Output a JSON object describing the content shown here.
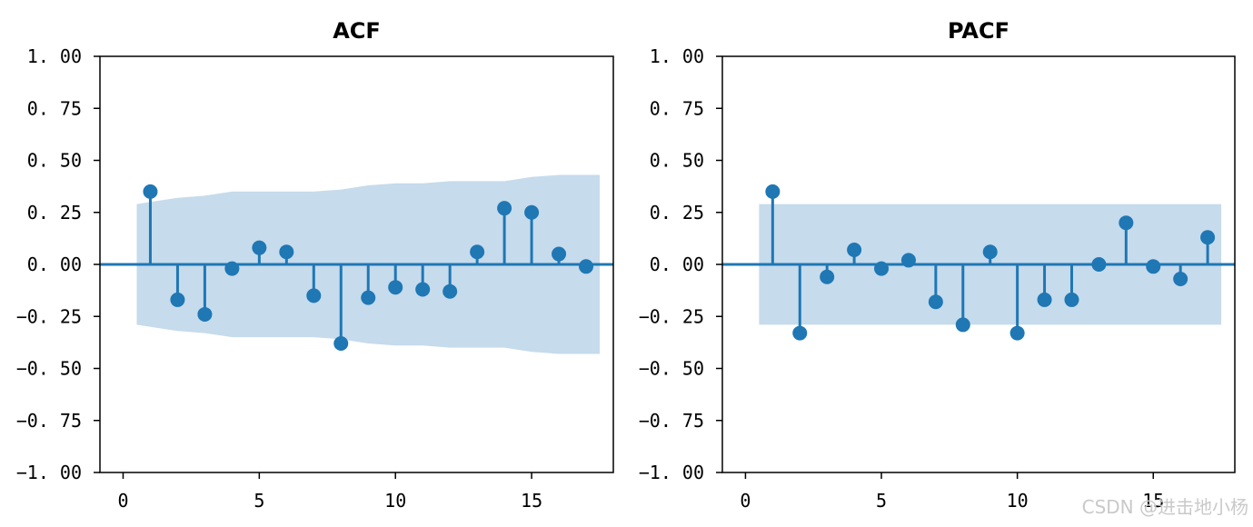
{
  "chart_data": [
    {
      "type": "stem",
      "title": "ACF",
      "xlabel": "",
      "ylabel": "",
      "xlim": [
        -0.85,
        18.0
      ],
      "ylim": [
        -1.0,
        1.0
      ],
      "x_ticks": [
        0,
        5,
        10,
        15
      ],
      "x_tick_labels": [
        "0",
        "5",
        "10",
        "15"
      ],
      "y_ticks": [
        1.0,
        0.75,
        0.5,
        0.25,
        0.0,
        -0.25,
        -0.5,
        -0.75,
        -1.0
      ],
      "y_tick_labels": [
        "1. 00",
        "0. 75",
        "0. 50",
        "0. 25",
        "0. 00",
        "−0. 25",
        "−0. 50",
        "−0. 75",
        "−1. 00"
      ],
      "grid": false,
      "x": [
        1,
        2,
        3,
        4,
        5,
        6,
        7,
        8,
        9,
        10,
        11,
        12,
        13,
        14,
        15,
        16,
        17
      ],
      "values": [
        0.35,
        -0.17,
        -0.24,
        -0.02,
        0.08,
        0.06,
        -0.15,
        -0.38,
        -0.16,
        -0.11,
        -0.12,
        -0.13,
        0.06,
        0.27,
        0.25,
        0.05,
        -0.01
      ],
      "confidence_band": {
        "x": [
          0.5,
          1.5,
          2,
          3,
          4,
          5,
          6,
          7,
          8,
          9,
          10,
          11,
          12,
          13,
          14,
          15,
          16,
          17,
          17.5
        ],
        "upper": [
          0.29,
          0.31,
          0.32,
          0.33,
          0.35,
          0.35,
          0.35,
          0.35,
          0.36,
          0.38,
          0.39,
          0.39,
          0.4,
          0.4,
          0.4,
          0.42,
          0.43,
          0.43,
          0.43
        ]
      },
      "colors": {
        "stem": "#1f77b4",
        "band": "#c6dbec"
      }
    },
    {
      "type": "stem",
      "title": "PACF",
      "xlabel": "",
      "ylabel": "",
      "xlim": [
        -0.85,
        18.0
      ],
      "ylim": [
        -1.0,
        1.0
      ],
      "x_ticks": [
        0,
        5,
        10,
        15
      ],
      "x_tick_labels": [
        "0",
        "5",
        "10",
        "15"
      ],
      "y_ticks": [
        1.0,
        0.75,
        0.5,
        0.25,
        0.0,
        -0.25,
        -0.5,
        -0.75,
        -1.0
      ],
      "y_tick_labels": [
        "1. 00",
        "0. 75",
        "0. 50",
        "0. 25",
        "0. 00",
        "−0. 25",
        "−0. 50",
        "−0. 75",
        "−1. 00"
      ],
      "grid": false,
      "x": [
        1,
        2,
        3,
        4,
        5,
        6,
        7,
        8,
        9,
        10,
        11,
        12,
        13,
        14,
        15,
        16,
        17
      ],
      "values": [
        0.35,
        -0.33,
        -0.06,
        0.07,
        -0.02,
        0.02,
        -0.18,
        -0.29,
        0.06,
        -0.33,
        -0.17,
        -0.17,
        0.0,
        0.2,
        -0.01,
        -0.07,
        0.13
      ],
      "confidence_band": {
        "x": [
          0.5,
          17.5
        ],
        "upper": [
          0.29,
          0.29
        ]
      },
      "colors": {
        "stem": "#1f77b4",
        "band": "#c6dbec"
      }
    }
  ],
  "watermark": "CSDN @进击地小杨"
}
